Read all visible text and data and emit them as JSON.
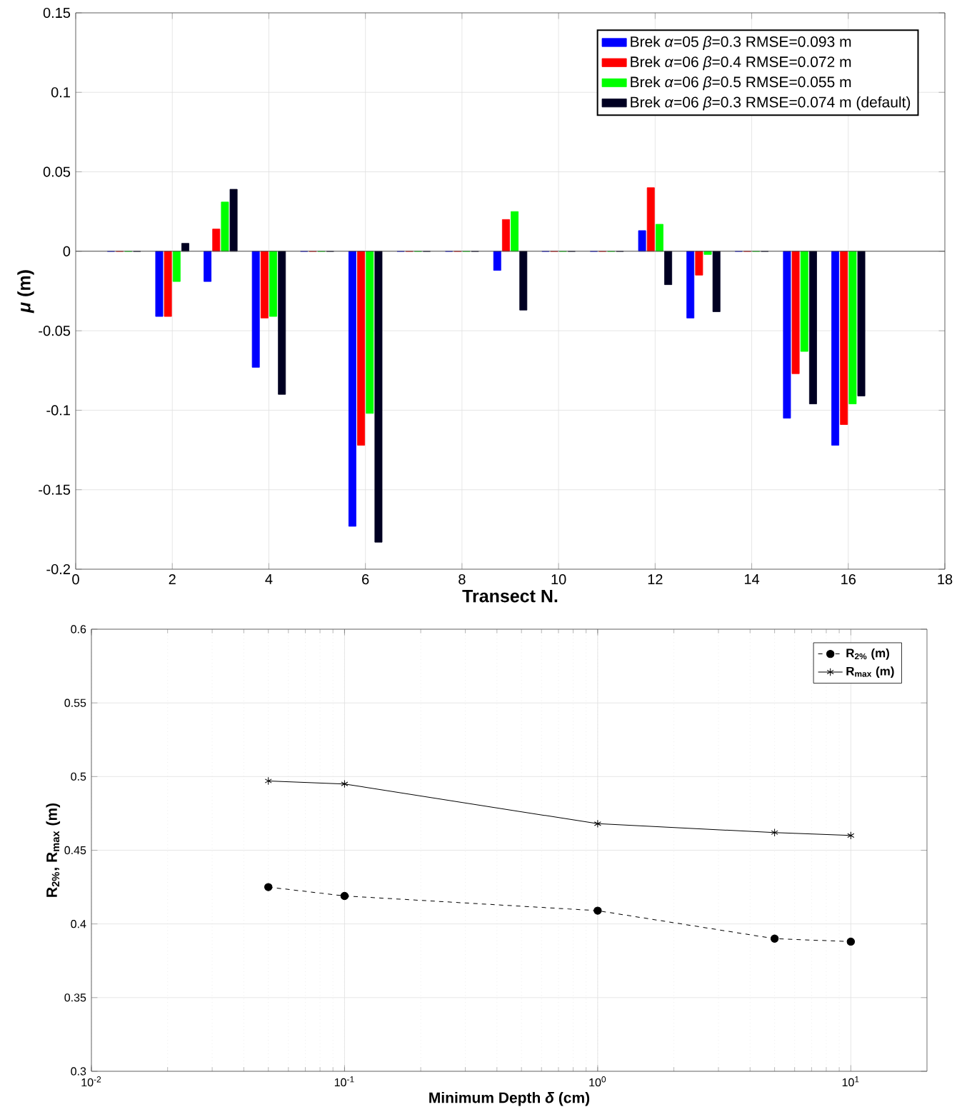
{
  "chart_data": [
    {
      "type": "bar",
      "x": [
        1,
        2,
        3,
        4,
        5,
        6,
        7,
        8,
        9,
        10,
        11,
        12,
        13,
        14,
        15,
        16
      ],
      "series": [
        {
          "name": "Brek *α*=05 *β*=0.3 RMSE=0.093 m",
          "color": "#0000ff",
          "values": [
            0,
            -0.041,
            -0.019,
            -0.073,
            0,
            -0.173,
            0,
            0,
            -0.012,
            0,
            0,
            0.013,
            -0.042,
            0,
            -0.105,
            -0.122
          ]
        },
        {
          "name": "Brek *α*=06 *β*=0.4 RMSE=0.072 m",
          "color": "#ff0000",
          "values": [
            0,
            -0.041,
            0.014,
            -0.042,
            0,
            -0.122,
            0,
            0,
            0.02,
            0,
            0,
            0.04,
            -0.015,
            0,
            -0.077,
            -0.109
          ]
        },
        {
          "name": "Brek *α*=06 *β*=0.5 RMSE=0.055 m",
          "color": "#00ff00",
          "values": [
            0,
            -0.019,
            0.031,
            -0.041,
            0,
            -0.102,
            0,
            0,
            0.025,
            0,
            0,
            0.017,
            -0.002,
            0,
            -0.063,
            -0.096
          ]
        },
        {
          "name": "Brek *α*=06 *β*=0.3 RMSE=0.074 m (default)",
          "color": "#000022",
          "values": [
            0,
            0.005,
            0.039,
            -0.09,
            0,
            -0.183,
            0,
            0,
            -0.037,
            0,
            0,
            -0.021,
            -0.038,
            0,
            -0.096,
            -0.091
          ]
        }
      ],
      "xlim": [
        0,
        18
      ],
      "xticks": [
        0,
        2,
        4,
        6,
        8,
        10,
        12,
        14,
        16,
        18
      ],
      "ylim": [
        -0.2,
        0.15
      ],
      "yticks": [
        -0.2,
        -0.15,
        -0.1,
        -0.05,
        0,
        0.05,
        0.1,
        0.15
      ],
      "xlabel": "Transect N.",
      "ylabel": "*μ* (m)",
      "grid": true,
      "legend": "top right"
    },
    {
      "type": "line",
      "x": [
        0.05,
        0.1,
        1,
        5,
        10
      ],
      "series": [
        {
          "name": "R$_{2%}$ (m)",
          "color": "#000000",
          "marker": "circle",
          "line_style": "dashed",
          "values": [
            0.425,
            0.419,
            0.409,
            0.39,
            0.388
          ]
        },
        {
          "name": "R$_{max}$ (m)",
          "color": "#000000",
          "marker": "cross",
          "line_style": "solid",
          "values": [
            0.497,
            0.495,
            0.468,
            0.462,
            0.46
          ]
        }
      ],
      "log": "x",
      "xlim": [
        0.01,
        20
      ],
      "xticks": [
        {
          "value": 0.01,
          "label": "10$^{-2}$"
        },
        {
          "value": 0.1,
          "label": "10$^{-1}$"
        },
        {
          "value": 1,
          "label": "10$^{0}$"
        },
        {
          "value": 10,
          "label": "10$^{1}$"
        }
      ],
      "ylim": [
        0.3,
        0.6
      ],
      "yticks": [
        0.3,
        0.35,
        0.4,
        0.45,
        0.5,
        0.55,
        0.6
      ],
      "xlabel": "Minimum Depth *δ* (cm)",
      "ylabel": "R$_{2%}$, R$_{max}$ (m)",
      "grid": true,
      "legend": "top right"
    }
  ]
}
